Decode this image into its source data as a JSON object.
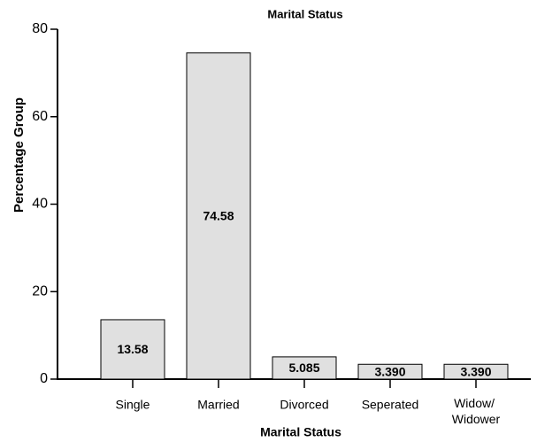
{
  "chart_data": {
    "type": "bar",
    "title": "Marital Status",
    "xlabel": "Marital Status",
    "ylabel": "Percentage Group",
    "categories": [
      "Single",
      "Married",
      "Divorced",
      "Seperated",
      "Widow/ Widower"
    ],
    "values": [
      13.58,
      74.58,
      5.085,
      3.39,
      3.39
    ],
    "value_labels": [
      "13.58",
      "74.58",
      "5.085",
      "3.390",
      "3.390"
    ],
    "color": "#e0e0e0",
    "ylim": [
      0,
      80
    ],
    "yticks": [
      0,
      20,
      40,
      60,
      80
    ],
    "grid": false
  }
}
